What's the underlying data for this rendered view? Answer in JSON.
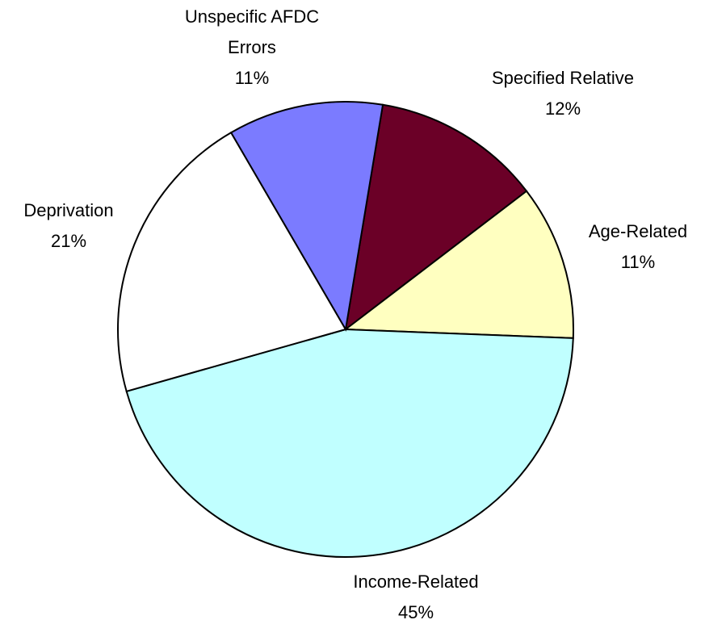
{
  "chart_data": {
    "type": "pie",
    "categories": [
      "Specified Relative",
      "Age-Related",
      "Income-Related",
      "Deprivation",
      "Unspecific AFDC Errors"
    ],
    "values": [
      12,
      11,
      45,
      21,
      11
    ],
    "value_labels": [
      "12%",
      "11%",
      "45%",
      "21%",
      "11%"
    ],
    "colors": [
      "#6b0027",
      "#ffffc0",
      "#c0ffff",
      "#ffffff",
      "#7b7bff"
    ]
  }
}
